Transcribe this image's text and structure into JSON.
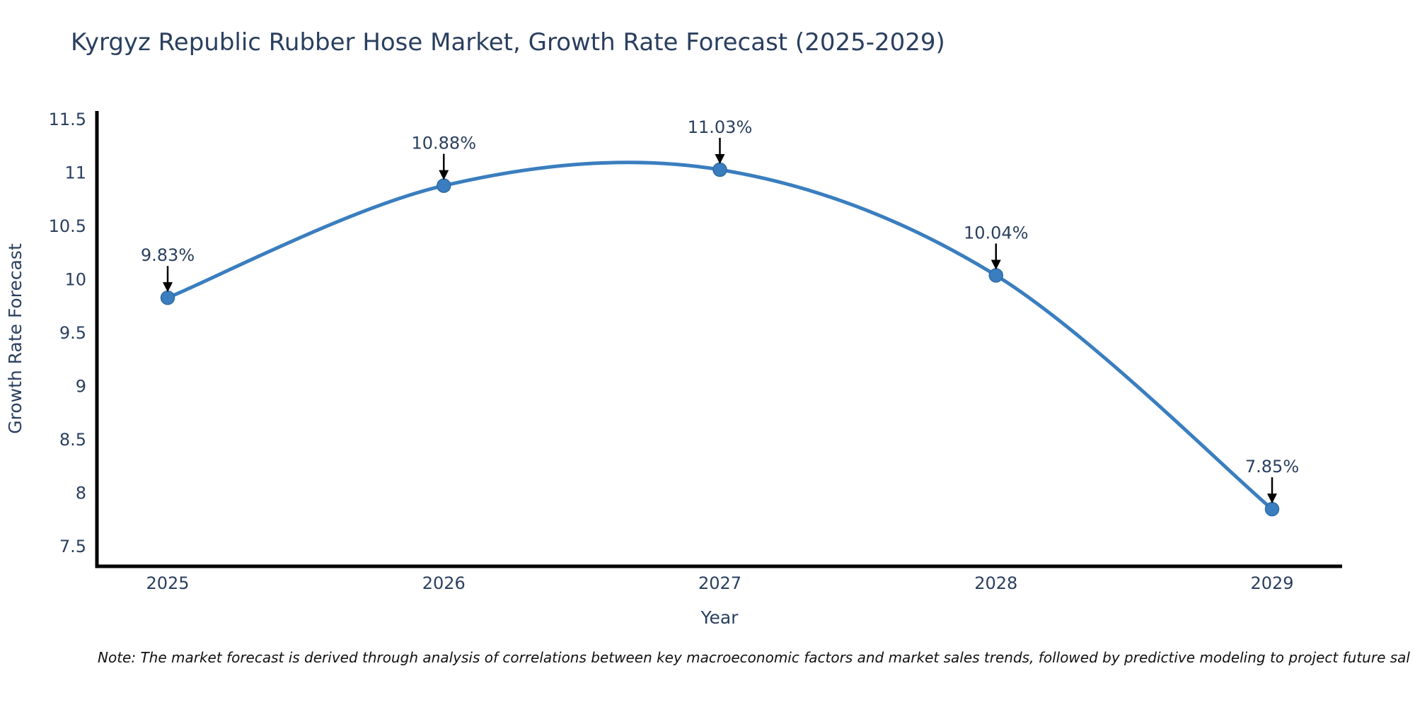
{
  "header": {
    "title": "Kyrgyz Republic Rubber Hose Market, Growth Rate Forecast (2025-2029)"
  },
  "chart_data": {
    "type": "line",
    "title": "Kyrgyz Republic Rubber Hose Market, Growth Rate Forecast (2025-2029)",
    "x": [
      "2025",
      "2026",
      "2027",
      "2028",
      "2029"
    ],
    "series": [
      {
        "name": "Growth Rate Forecast",
        "values": [
          9.83,
          10.88,
          11.03,
          10.04,
          7.85
        ],
        "point_labels": [
          "9.83%",
          "10.88%",
          "11.03%",
          "10.04%",
          "7.85%"
        ]
      }
    ],
    "xlabel": "Year",
    "ylabel": "Growth Rate Forecast",
    "ylim": [
      7.5,
      11.5
    ],
    "yticks": [
      7.5,
      8,
      8.5,
      9,
      9.5,
      10,
      10.5,
      11,
      11.5
    ],
    "grid": false,
    "legend_position": "none",
    "line_shape": "spline",
    "marker": "circle"
  },
  "theme": {
    "line_color": "#3a7ebf",
    "marker_color": "#3a7ebf",
    "marker_edge_color": "#2f6ba3",
    "axis_line_color": "#000000",
    "annotation_arrow_color": "#000000",
    "text_color": "#2a3f5f",
    "note_color": "#111111",
    "background": "#ffffff"
  },
  "footer": {
    "note": "Note: The market forecast is derived through analysis of correlations between key macroeconomic factors and market sales trends, followed by predictive modeling to project future sal"
  }
}
